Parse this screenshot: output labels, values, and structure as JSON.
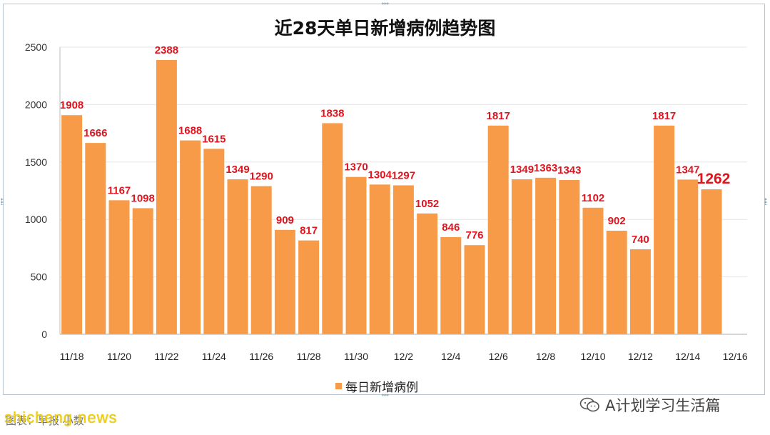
{
  "colors": {
    "bar": "#f79b49",
    "label": "#e1141e",
    "axis": "#bdbdbd",
    "grid": "#e6e6e6"
  },
  "chart_data": {
    "type": "bar",
    "title": "近28天单日新增病例趋势图",
    "categories": [
      "11/18",
      "11/19",
      "11/20",
      "11/21",
      "11/22",
      "11/23",
      "11/24",
      "11/25",
      "11/26",
      "11/27",
      "11/28",
      "11/29",
      "11/30",
      "12/1",
      "12/2",
      "12/3",
      "12/4",
      "12/5",
      "12/6",
      "12/7",
      "12/8",
      "12/9",
      "12/10",
      "12/11",
      "12/12",
      "12/13",
      "12/14",
      "12/15"
    ],
    "x_tick_labels": [
      "11/18",
      "11/20",
      "11/22",
      "11/24",
      "11/26",
      "11/28",
      "11/30",
      "12/2",
      "12/4",
      "12/6",
      "12/8",
      "12/10",
      "12/12",
      "12/14",
      "12/16"
    ],
    "series": [
      {
        "name": "每日新增病例",
        "values": [
          1908,
          1666,
          1167,
          1098,
          2388,
          1688,
          1615,
          1349,
          1290,
          909,
          817,
          1838,
          1370,
          1304,
          1297,
          1052,
          846,
          776,
          1817,
          1349,
          1363,
          1343,
          1102,
          902,
          740,
          1817,
          1347,
          1262
        ]
      }
    ],
    "y_ticks": [
      0,
      500,
      1000,
      1500,
      2000,
      2500
    ],
    "ylim": [
      0,
      2500
    ],
    "grid": true,
    "legend_position": "bottom",
    "highlight_last_label": true
  },
  "watermarks": {
    "left": "shicheng.news",
    "source": "图表：早报  小数",
    "right": "A计划学习生活篇"
  }
}
